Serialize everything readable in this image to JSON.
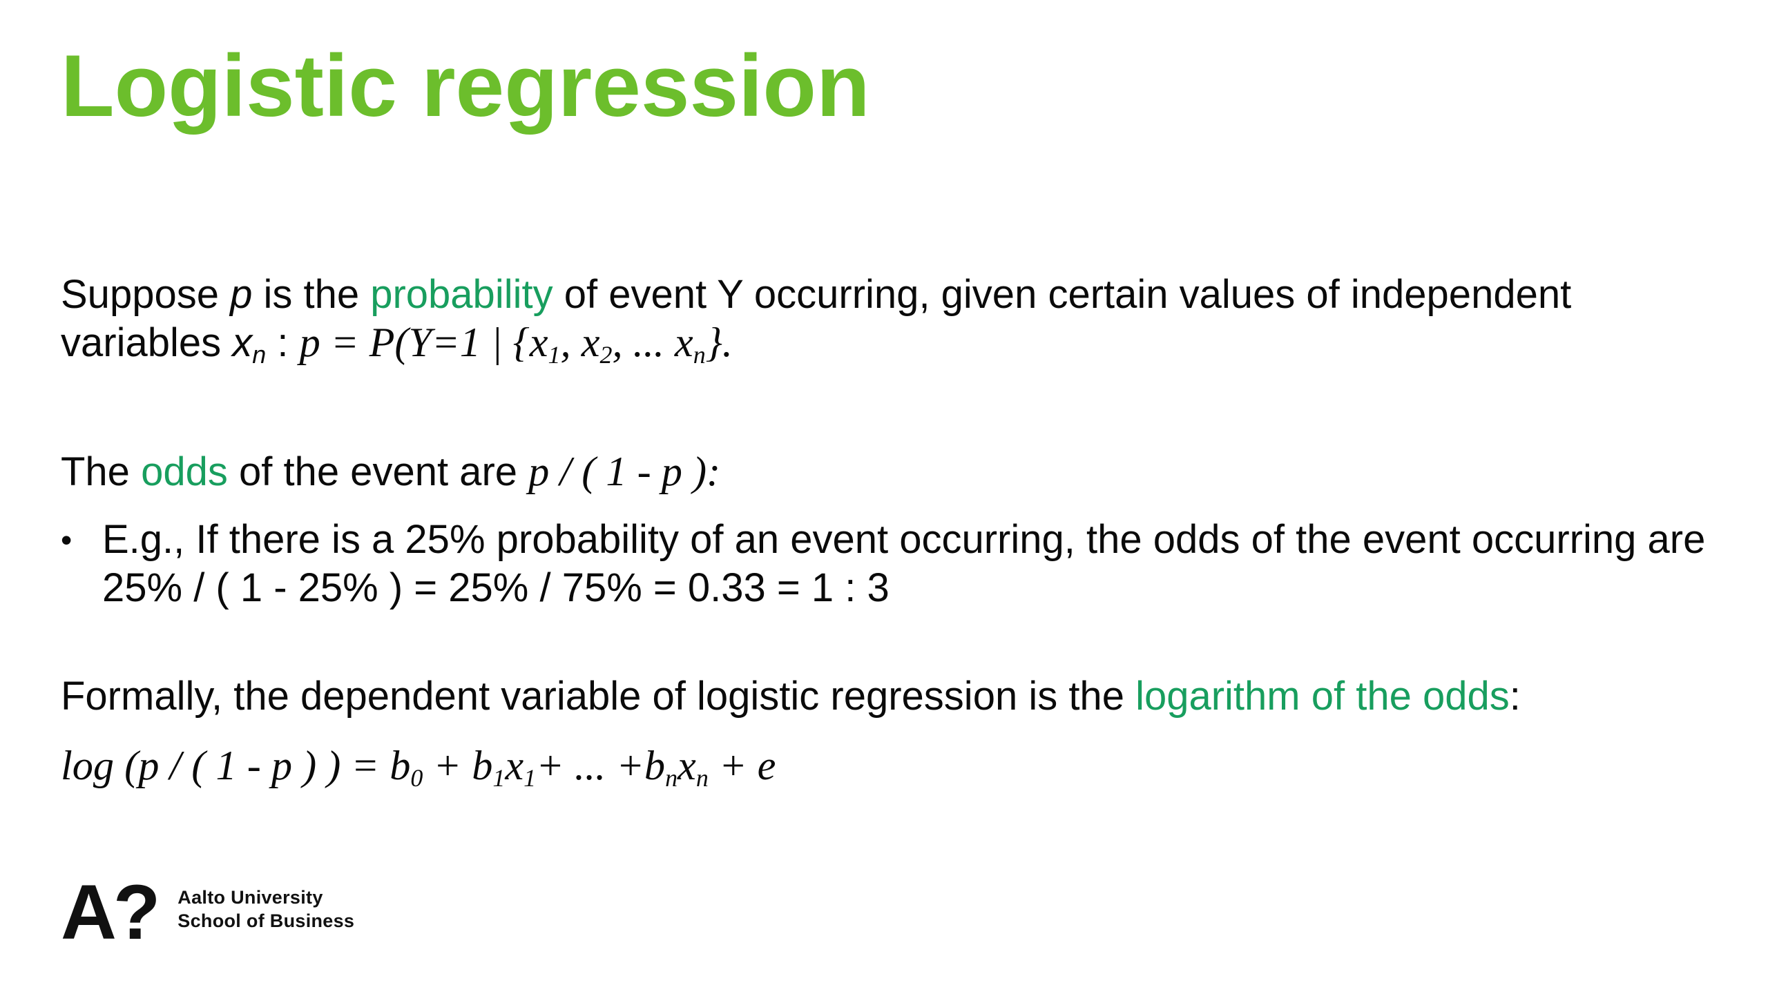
{
  "slide": {
    "title": "Logistic regression",
    "colors": {
      "title_green": "#6CBE2C",
      "keyword_green": "#189E5E",
      "text_black": "#0A0A0A",
      "background": "#FFFFFF"
    },
    "intro": {
      "lines": [
        [
          {
            "t": "Suppose "
          },
          {
            "t": "p",
            "c": "msi"
          },
          {
            "t": " is the "
          },
          {
            "t": "probability",
            "c": "green"
          },
          {
            "t": " of event Y occurring, given certain values of independent"
          }
        ],
        [
          {
            "t": "variables "
          },
          {
            "t": "x",
            "c": "msi"
          },
          {
            "t": "n",
            "c": "msi",
            "sub": true
          },
          {
            "t": " : "
          },
          {
            "t": "p = P(Y=1 | {x",
            "c": "mi"
          },
          {
            "t": "1",
            "c": "mi",
            "sub": true
          },
          {
            "t": ", x",
            "c": "mi"
          },
          {
            "t": "2",
            "c": "mi",
            "sub": true
          },
          {
            "t": ", ... x",
            "c": "mi"
          },
          {
            "t": "n",
            "c": "mi",
            "sub": true
          },
          {
            "t": "}.",
            "c": "mi"
          }
        ]
      ]
    },
    "odds": {
      "lines": [
        [
          {
            "t": "The "
          },
          {
            "t": "odds",
            "c": "green"
          },
          {
            "t": " of the event are "
          },
          {
            "t": "p / ( 1 - p ):",
            "c": "mi"
          }
        ]
      ]
    },
    "bullet": {
      "glyph": "•",
      "lines": [
        [
          {
            "t": "E.g., If there is a 25% probability of an event occurring, the odds of the event occurring are"
          }
        ],
        [
          {
            "t": "25% / ( 1 - 25% ) = 25% / 75% = 0.33 = 1 : 3"
          }
        ]
      ]
    },
    "formal": {
      "lines": [
        [
          {
            "t": "Formally, the dependent variable of logistic regression is the "
          },
          {
            "t": "logarithm of the odds",
            "c": "green"
          },
          {
            "t": ":"
          }
        ]
      ]
    },
    "formula": {
      "lines": [
        [
          {
            "t": "log (p / ( 1 - p ) ) = b",
            "c": "mi"
          },
          {
            "t": "0",
            "c": "mi",
            "sub": true
          },
          {
            "t": " + b",
            "c": "mi"
          },
          {
            "t": "1",
            "c": "mi",
            "sub": true
          },
          {
            "t": "x",
            "c": "mi"
          },
          {
            "t": "1",
            "c": "mi",
            "sub": true
          },
          {
            "t": "+ ... +b",
            "c": "mi"
          },
          {
            "t": "n",
            "c": "mi",
            "sub": true
          },
          {
            "t": "x",
            "c": "mi"
          },
          {
            "t": "n",
            "c": "mi",
            "sub": true
          },
          {
            "t": " + e",
            "c": "mi"
          }
        ]
      ]
    },
    "footer": {
      "logo_mark": "A?",
      "org": "Aalto University",
      "unit": "School of Business"
    }
  }
}
